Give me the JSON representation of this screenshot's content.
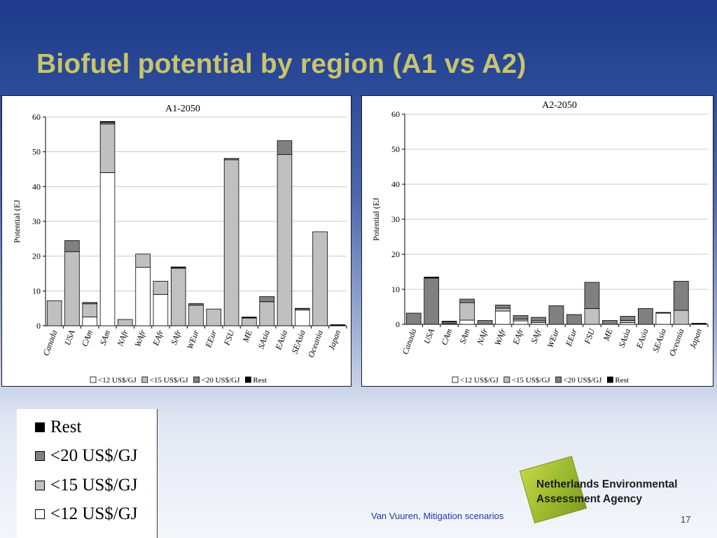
{
  "slide": {
    "title": "Biofuel potential by region (A1 vs A2)",
    "footer": "Van Vuuren, Mitigation scenarios",
    "page_number": "17",
    "logo": {
      "line1": "Netherlands Environmental",
      "line2": "Assessment Agency"
    }
  },
  "legend_box": {
    "items": [
      {
        "label": "Rest",
        "color": "#000000"
      },
      {
        "label": "<20 US$/GJ",
        "color": "#808080"
      },
      {
        "label": "<15 US$/GJ",
        "color": "#c0c0c0"
      },
      {
        "label": "<12 US$/GJ",
        "color": "#ffffff"
      }
    ]
  },
  "chart_data": [
    {
      "type": "bar",
      "stacked": true,
      "title": "A1-2050",
      "xlabel": "",
      "ylabel": "Potential (EJ",
      "ylim": [
        0,
        60
      ],
      "yticks": [
        0,
        10,
        20,
        30,
        40,
        50,
        60
      ],
      "grid": true,
      "legend": "bottom",
      "categories": [
        "Canada",
        "USA",
        "CAm",
        "SAm",
        "NAfr",
        "WAfr",
        "EAfr",
        "SAfr",
        "WEur",
        "EEur",
        "FSU",
        "ME",
        "SAsia",
        "EAsia",
        "SEAsia",
        "Oceania",
        "Japan"
      ],
      "series": [
        {
          "name": "<12 US$/GJ",
          "color": "#ffffff",
          "values": [
            0,
            0,
            2.5,
            44,
            0,
            16.8,
            9,
            0,
            0,
            0,
            0,
            0,
            0,
            0,
            4.5,
            0,
            0
          ]
        },
        {
          "name": "<15 US$/GJ",
          "color": "#c0c0c0",
          "values": [
            7.2,
            21.3,
            3.8,
            14,
            1.8,
            3.8,
            3.8,
            16.5,
            5.9,
            4.8,
            47.7,
            2.2,
            6.9,
            49.2,
            0.4,
            27,
            0
          ]
        },
        {
          "name": "<20 US$/GJ",
          "color": "#808080",
          "values": [
            0,
            3.2,
            0.4,
            0.5,
            0,
            0,
            0,
            0.3,
            0.5,
            0,
            0.4,
            0,
            1.5,
            4,
            0,
            0,
            0
          ]
        },
        {
          "name": "Rest",
          "color": "#000000",
          "values": [
            0,
            0,
            0,
            0.2,
            0,
            0,
            0,
            0.1,
            0,
            0,
            0,
            0.3,
            0,
            0,
            0.1,
            0,
            0.3
          ]
        }
      ]
    },
    {
      "type": "bar",
      "stacked": true,
      "title": "A2-2050",
      "xlabel": "",
      "ylabel": "Potential (EJ",
      "ylim": [
        0,
        60
      ],
      "yticks": [
        0,
        10,
        20,
        30,
        40,
        50,
        60
      ],
      "grid": true,
      "legend": "bottom",
      "categories": [
        "Canada",
        "USA",
        "CAm",
        "SAm",
        "NAfr",
        "WAfr",
        "EAfr",
        "SAfr",
        "WEur",
        "EEur",
        "FSU",
        "ME",
        "SAsia",
        "EAsia",
        "SEAsia",
        "Oceania",
        "Japan"
      ],
      "series": [
        {
          "name": "<12 US$/GJ",
          "color": "#ffffff",
          "values": [
            0,
            0,
            0.2,
            1.2,
            0,
            3.8,
            1,
            0.5,
            0,
            0,
            0,
            0,
            0.5,
            0,
            3.2,
            0,
            0
          ]
        },
        {
          "name": "<15 US$/GJ",
          "color": "#c0c0c0",
          "values": [
            0,
            0,
            0,
            5,
            0,
            0.8,
            0.5,
            0.5,
            0,
            0,
            4.5,
            0,
            0.6,
            0,
            0,
            4,
            0
          ]
        },
        {
          "name": "<20 US$/GJ",
          "color": "#808080",
          "values": [
            3.2,
            13.2,
            0.6,
            1,
            1.1,
            0.9,
            1,
            1,
            5.3,
            2.8,
            7.5,
            1.1,
            1.2,
            4.5,
            0,
            8.3,
            0
          ]
        },
        {
          "name": "Rest",
          "color": "#000000",
          "values": [
            0,
            0.3,
            0.1,
            0,
            0,
            0,
            0,
            0,
            0,
            0,
            0,
            0,
            0,
            0,
            0.2,
            0,
            0.3
          ]
        }
      ]
    }
  ]
}
